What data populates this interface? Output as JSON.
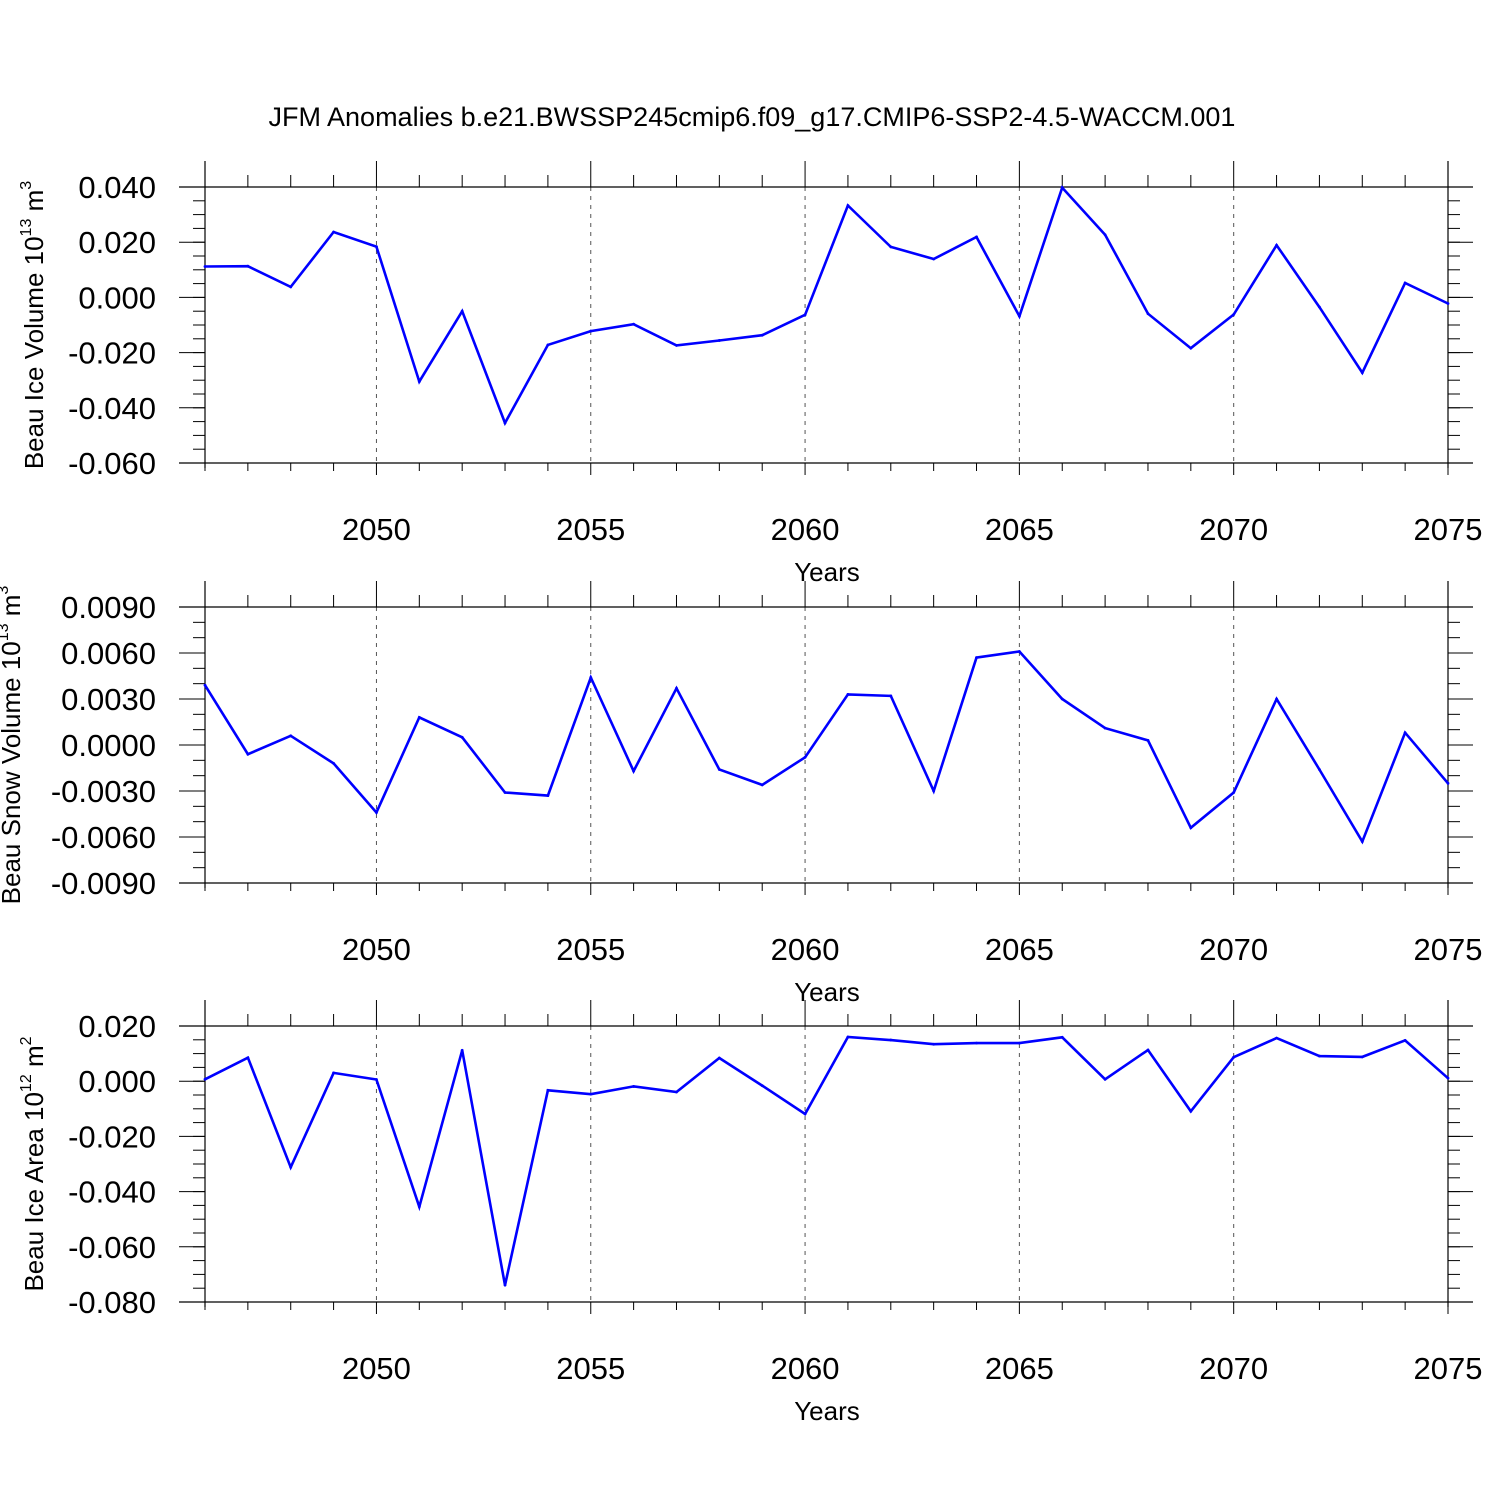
{
  "page": {
    "title": "JFM Anomalies b.e21.BWSSP245cmip6.f09_g17.CMIP6-SSP2-4.5-WACCM.001"
  },
  "colors": {
    "line": "#0000ff",
    "axis": "#000000",
    "grid": "#555555"
  },
  "chart_data": [
    {
      "type": "line",
      "id": "ice-volume",
      "ylabel": "Beau Ice Volume 10",
      "ylabel_exp": "13",
      "ylabel_unit": " m",
      "ylabel_unit_exp": "3",
      "xlabel": "Years",
      "xlim": [
        2046,
        2075
      ],
      "ylim": [
        -0.06,
        0.04
      ],
      "yticks": [
        -0.06,
        -0.04,
        -0.02,
        0.0,
        0.02,
        0.04
      ],
      "ytick_labels": [
        "-0.060",
        "-0.040",
        "-0.020",
        "0.000",
        "0.020",
        "0.040"
      ],
      "yminor": 0.005,
      "xticks": [
        2050,
        2055,
        2060,
        2065,
        2070,
        2075
      ],
      "xtick_labels": [
        "2050",
        "2055",
        "2060",
        "2065",
        "2070",
        "2075"
      ],
      "grid_x": [
        2050,
        2055,
        2060,
        2065,
        2070
      ],
      "x": [
        2046,
        2047,
        2048,
        2049,
        2050,
        2051,
        2052,
        2053,
        2054,
        2055,
        2056,
        2057,
        2058,
        2059,
        2060,
        2061,
        2062,
        2063,
        2064,
        2065,
        2066,
        2067,
        2068,
        2069,
        2070,
        2071,
        2072,
        2073,
        2074,
        2075
      ],
      "values": [
        0.0112,
        0.0113,
        0.0038,
        0.0237,
        0.0184,
        -0.0305,
        -0.005,
        -0.0455,
        -0.0172,
        -0.0122,
        -0.0097,
        -0.0174,
        -0.0156,
        -0.0137,
        -0.0063,
        0.0333,
        0.0183,
        0.0139,
        0.0219,
        -0.0068,
        0.0398,
        0.0227,
        -0.0059,
        -0.0184,
        -0.0062,
        0.0189,
        -0.0035,
        -0.0273,
        0.0052,
        -0.0022
      ]
    },
    {
      "type": "line",
      "id": "snow-volume",
      "ylabel": "Beau Snow Volume 10",
      "ylabel_exp": "13",
      "ylabel_unit": " m",
      "ylabel_unit_exp": "3",
      "xlabel": "Years",
      "xlim": [
        2046,
        2075
      ],
      "ylim": [
        -0.009,
        0.009
      ],
      "yticks": [
        -0.009,
        -0.006,
        -0.003,
        0.0,
        0.003,
        0.006,
        0.009
      ],
      "ytick_labels": [
        "-0.0090",
        "-0.0060",
        "-0.0030",
        "0.0000",
        "0.0030",
        "0.0060",
        "0.0090"
      ],
      "yminor": 0.001,
      "xticks": [
        2050,
        2055,
        2060,
        2065,
        2070,
        2075
      ],
      "xtick_labels": [
        "2050",
        "2055",
        "2060",
        "2065",
        "2070",
        "2075"
      ],
      "grid_x": [
        2050,
        2055,
        2060,
        2065,
        2070
      ],
      "x": [
        2046,
        2047,
        2048,
        2049,
        2050,
        2051,
        2052,
        2053,
        2054,
        2055,
        2056,
        2057,
        2058,
        2059,
        2060,
        2061,
        2062,
        2063,
        2064,
        2065,
        2066,
        2067,
        2068,
        2069,
        2070,
        2071,
        2072,
        2073,
        2074,
        2075
      ],
      "values": [
        0.0039,
        -0.0006,
        0.0006,
        -0.0012,
        -0.0044,
        0.0018,
        0.0005,
        -0.0031,
        -0.0033,
        0.0044,
        -0.0017,
        0.0037,
        -0.0016,
        -0.0026,
        -0.0008,
        0.0033,
        0.0032,
        -0.003,
        0.0057,
        0.0061,
        0.003,
        0.0011,
        0.0003,
        -0.0054,
        -0.0031,
        0.003,
        -0.0016,
        -0.0063,
        0.0008,
        -0.0025
      ]
    },
    {
      "type": "line",
      "id": "ice-area",
      "ylabel": "Beau Ice Area 10",
      "ylabel_exp": "12",
      "ylabel_unit": " m",
      "ylabel_unit_exp": "2",
      "xlabel": "Years",
      "xlim": [
        2046,
        2075
      ],
      "ylim": [
        -0.08,
        0.02
      ],
      "yticks": [
        -0.08,
        -0.06,
        -0.04,
        -0.02,
        0.0,
        0.02
      ],
      "ytick_labels": [
        "-0.080",
        "-0.060",
        "-0.040",
        "-0.020",
        "0.000",
        "0.020"
      ],
      "yminor": 0.005,
      "xticks": [
        2050,
        2055,
        2060,
        2065,
        2070,
        2075
      ],
      "xtick_labels": [
        "2050",
        "2055",
        "2060",
        "2065",
        "2070",
        "2075"
      ],
      "grid_x": [
        2050,
        2055,
        2060,
        2065,
        2070
      ],
      "x": [
        2046,
        2047,
        2048,
        2049,
        2050,
        2051,
        2052,
        2053,
        2054,
        2055,
        2056,
        2057,
        2058,
        2059,
        2060,
        2061,
        2062,
        2063,
        2064,
        2065,
        2066,
        2067,
        2068,
        2069,
        2070,
        2071,
        2072,
        2073,
        2074,
        2075
      ],
      "values": [
        0.0007,
        0.0085,
        -0.0312,
        0.003,
        0.0006,
        -0.0455,
        0.0112,
        -0.0739,
        -0.0033,
        -0.0047,
        -0.0019,
        -0.0039,
        0.0084,
        -0.0016,
        -0.0119,
        0.016,
        0.0149,
        0.0134,
        0.0138,
        0.0138,
        0.0159,
        0.0007,
        0.0113,
        -0.0109,
        0.0087,
        0.0156,
        0.0091,
        0.0088,
        0.0148,
        0.0011
      ]
    }
  ]
}
